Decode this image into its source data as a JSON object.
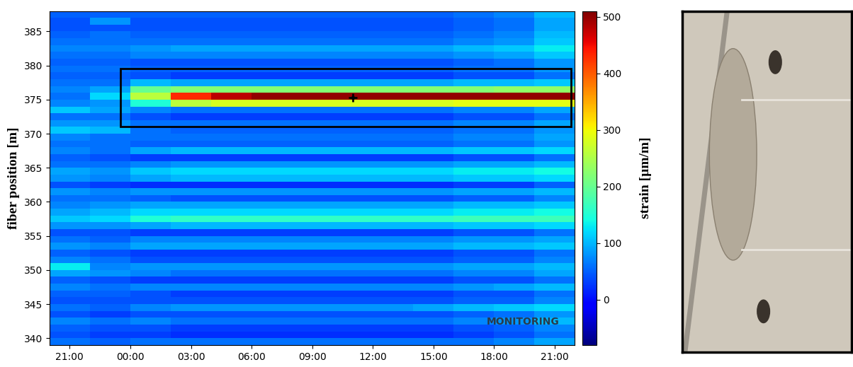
{
  "chart_data": {
    "type": "heatmap",
    "xlabel": "",
    "ylabel": "fiber position [m]",
    "xlim": [
      20,
      46
    ],
    "xticks": [
      {
        "value": 21,
        "label": "21:00"
      },
      {
        "value": 24,
        "label": "00:00"
      },
      {
        "value": 27,
        "label": "03:00"
      },
      {
        "value": 30,
        "label": "06:00"
      },
      {
        "value": 33,
        "label": "09:00"
      },
      {
        "value": 36,
        "label": "12:00"
      },
      {
        "value": 39,
        "label": "15:00"
      },
      {
        "value": 42,
        "label": "18:00"
      },
      {
        "value": 45,
        "label": "21:00"
      }
    ],
    "ylim": [
      339,
      388
    ],
    "yticks": [
      340,
      345,
      350,
      355,
      360,
      365,
      370,
      375,
      380,
      385
    ],
    "x_edges": [
      20,
      22,
      24,
      26,
      28,
      30,
      32,
      34,
      36,
      38,
      40,
      42,
      44,
      46
    ],
    "y_edges": [
      339,
      340,
      341,
      342,
      343,
      344,
      345,
      346,
      347,
      348,
      349,
      350,
      351,
      352,
      353,
      354,
      355,
      356,
      357,
      358,
      359,
      360,
      361,
      362,
      363,
      364,
      365,
      366,
      367,
      368,
      369,
      370,
      371,
      372,
      373,
      374,
      375,
      376,
      377,
      378,
      379,
      380,
      381,
      382,
      383,
      384,
      385,
      386,
      387,
      388
    ],
    "cells": [
      [
        60,
        50,
        60,
        60,
        60,
        60,
        60,
        60,
        60,
        60,
        60,
        70,
        90
      ],
      [
        40,
        30,
        30,
        20,
        20,
        20,
        20,
        20,
        20,
        20,
        30,
        40,
        60
      ],
      [
        50,
        40,
        40,
        30,
        30,
        30,
        30,
        30,
        30,
        30,
        40,
        50,
        70
      ],
      [
        70,
        60,
        70,
        60,
        60,
        60,
        60,
        60,
        60,
        60,
        70,
        80,
        100
      ],
      [
        40,
        30,
        40,
        40,
        40,
        40,
        40,
        40,
        40,
        40,
        50,
        60,
        80
      ],
      [
        60,
        50,
        70,
        80,
        80,
        80,
        80,
        80,
        80,
        90,
        100,
        110,
        120
      ],
      [
        40,
        40,
        40,
        40,
        40,
        40,
        40,
        40,
        40,
        40,
        50,
        50,
        70
      ],
      [
        50,
        50,
        40,
        30,
        30,
        30,
        30,
        30,
        30,
        30,
        40,
        40,
        60
      ],
      [
        70,
        60,
        70,
        70,
        70,
        70,
        70,
        70,
        70,
        70,
        80,
        90,
        100
      ],
      [
        50,
        40,
        30,
        30,
        30,
        30,
        30,
        30,
        30,
        30,
        40,
        40,
        60
      ],
      [
        90,
        80,
        70,
        60,
        60,
        60,
        60,
        60,
        60,
        60,
        70,
        70,
        90
      ],
      [
        130,
        70,
        80,
        80,
        80,
        80,
        80,
        80,
        80,
        80,
        90,
        90,
        100
      ],
      [
        70,
        60,
        40,
        40,
        40,
        40,
        40,
        40,
        40,
        40,
        50,
        50,
        70
      ],
      [
        50,
        40,
        30,
        30,
        30,
        30,
        30,
        30,
        30,
        30,
        40,
        40,
        60
      ],
      [
        80,
        70,
        90,
        90,
        90,
        90,
        90,
        90,
        90,
        90,
        100,
        100,
        110
      ],
      [
        60,
        50,
        70,
        70,
        70,
        70,
        70,
        70,
        70,
        70,
        80,
        80,
        90
      ],
      [
        40,
        40,
        30,
        30,
        30,
        30,
        30,
        30,
        30,
        30,
        40,
        40,
        60
      ],
      [
        80,
        80,
        90,
        100,
        100,
        100,
        100,
        100,
        100,
        100,
        110,
        110,
        120
      ],
      [
        110,
        120,
        150,
        160,
        160,
        160,
        160,
        160,
        160,
        160,
        170,
        170,
        170
      ],
      [
        90,
        100,
        120,
        120,
        120,
        120,
        120,
        120,
        120,
        120,
        130,
        130,
        140
      ],
      [
        70,
        80,
        90,
        90,
        90,
        90,
        90,
        90,
        90,
        90,
        100,
        100,
        110
      ],
      [
        60,
        60,
        50,
        40,
        40,
        40,
        40,
        40,
        40,
        40,
        50,
        50,
        70
      ],
      [
        80,
        70,
        80,
        80,
        80,
        80,
        80,
        80,
        80,
        80,
        90,
        90,
        100
      ],
      [
        40,
        30,
        20,
        20,
        20,
        20,
        20,
        20,
        20,
        20,
        30,
        30,
        50
      ],
      [
        80,
        70,
        90,
        100,
        100,
        100,
        100,
        100,
        100,
        100,
        110,
        110,
        120
      ],
      [
        90,
        80,
        110,
        120,
        120,
        120,
        120,
        120,
        120,
        120,
        130,
        130,
        140
      ],
      [
        60,
        60,
        70,
        80,
        80,
        80,
        80,
        80,
        80,
        80,
        90,
        90,
        100
      ],
      [
        50,
        40,
        30,
        30,
        30,
        30,
        30,
        30,
        30,
        30,
        40,
        40,
        60
      ],
      [
        70,
        60,
        90,
        100,
        100,
        100,
        100,
        100,
        100,
        100,
        110,
        110,
        120
      ],
      [
        60,
        60,
        50,
        50,
        50,
        50,
        50,
        50,
        50,
        50,
        60,
        60,
        80
      ],
      [
        70,
        60,
        60,
        60,
        60,
        60,
        60,
        60,
        60,
        60,
        70,
        70,
        90
      ],
      [
        110,
        100,
        60,
        50,
        50,
        50,
        50,
        50,
        50,
        50,
        60,
        60,
        80
      ],
      [
        80,
        80,
        60,
        60,
        60,
        60,
        60,
        60,
        60,
        60,
        70,
        70,
        90
      ],
      [
        60,
        60,
        40,
        30,
        30,
        30,
        30,
        30,
        30,
        30,
        40,
        40,
        60
      ],
      [
        110,
        90,
        70,
        60,
        60,
        60,
        60,
        60,
        60,
        60,
        70,
        70,
        90
      ],
      [
        70,
        80,
        150,
        260,
        280,
        280,
        280,
        280,
        280,
        280,
        290,
        290,
        290
      ],
      [
        60,
        120,
        260,
        430,
        480,
        500,
        500,
        500,
        500,
        500,
        500,
        500,
        500
      ],
      [
        70,
        90,
        200,
        220,
        220,
        220,
        220,
        220,
        220,
        220,
        220,
        230,
        230
      ],
      [
        60,
        60,
        100,
        90,
        90,
        90,
        90,
        90,
        90,
        90,
        100,
        100,
        110
      ],
      [
        50,
        50,
        40,
        30,
        30,
        30,
        30,
        30,
        30,
        30,
        40,
        40,
        60
      ],
      [
        60,
        60,
        50,
        50,
        50,
        50,
        50,
        50,
        50,
        50,
        60,
        60,
        80
      ],
      [
        50,
        50,
        40,
        40,
        40,
        40,
        40,
        40,
        40,
        40,
        50,
        60,
        80
      ],
      [
        60,
        60,
        70,
        70,
        70,
        70,
        70,
        70,
        70,
        70,
        80,
        90,
        110
      ],
      [
        70,
        70,
        80,
        90,
        90,
        90,
        90,
        90,
        90,
        90,
        100,
        110,
        130
      ],
      [
        60,
        60,
        60,
        60,
        60,
        60,
        60,
        60,
        60,
        60,
        70,
        80,
        110
      ],
      [
        50,
        60,
        50,
        50,
        50,
        50,
        50,
        50,
        50,
        50,
        60,
        70,
        100
      ],
      [
        40,
        40,
        40,
        40,
        40,
        40,
        40,
        40,
        40,
        40,
        50,
        60,
        90
      ],
      [
        40,
        80,
        40,
        40,
        40,
        40,
        40,
        40,
        40,
        40,
        50,
        60,
        90
      ],
      [
        50,
        50,
        50,
        50,
        50,
        50,
        50,
        50,
        50,
        50,
        60,
        70,
        100
      ]
    ],
    "colorbar": {
      "label": "strain [µm/m]",
      "range": [
        -80,
        510
      ],
      "ticks": [
        0,
        100,
        200,
        300,
        400,
        500
      ]
    },
    "highlight_box": {
      "x": [
        23.5,
        45.8
      ],
      "y": [
        371,
        379.5
      ]
    },
    "marked_point": {
      "x": 35,
      "y": 375.3
    },
    "logo_text": "MONITORING"
  }
}
